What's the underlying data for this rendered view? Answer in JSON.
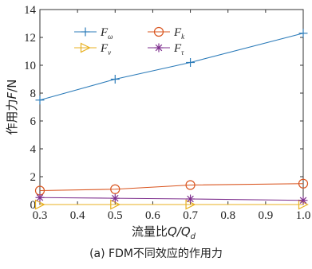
{
  "caption": "(a) FDM不同效应的作用力",
  "chart_data": {
    "type": "line",
    "xlabel": "流量比Q/Q_d",
    "ylabel": "作用力F/N",
    "xlim": [
      0.3,
      1.0
    ],
    "ylim": [
      0,
      14
    ],
    "xticks": [
      0.3,
      0.4,
      0.5,
      0.6,
      0.7,
      0.8,
      0.9,
      1.0
    ],
    "xtick_labels": [
      "0.3",
      "0.4",
      "0.5",
      "0.6",
      "0.7",
      "0.8",
      "0.9",
      "1.0"
    ],
    "yticks": [
      0,
      2,
      4,
      6,
      8,
      10,
      12,
      14
    ],
    "ytick_labels": [
      "0",
      "2",
      "4",
      "6",
      "8",
      "10",
      "12",
      "14"
    ],
    "grid": false,
    "legend_position": "top-left",
    "series": [
      {
        "name": "F_ω",
        "label_main": "F",
        "label_sub": "ω",
        "color": "#2b7bb9",
        "marker": "plus",
        "x": [
          0.3,
          0.5,
          0.7,
          1.0
        ],
        "y": [
          7.5,
          9.0,
          10.2,
          12.3
        ]
      },
      {
        "name": "F_k",
        "label_main": "F",
        "label_sub": "k",
        "color": "#d9541e",
        "marker": "circle",
        "x": [
          0.3,
          0.5,
          0.7,
          1.0
        ],
        "y": [
          1.0,
          1.1,
          1.4,
          1.5
        ]
      },
      {
        "name": "F_v",
        "label_main": "F",
        "label_sub": "v",
        "color": "#e8b020",
        "marker": "triangle-right",
        "x": [
          0.3,
          0.5,
          0.7,
          1.0
        ],
        "y": [
          0.0,
          0.0,
          0.0,
          0.0
        ]
      },
      {
        "name": "F_τ",
        "label_main": "F",
        "label_sub": "τ",
        "color": "#7e2f8e",
        "marker": "asterisk",
        "x": [
          0.3,
          0.5,
          0.7,
          1.0
        ],
        "y": [
          0.5,
          0.45,
          0.4,
          0.3
        ]
      }
    ]
  }
}
